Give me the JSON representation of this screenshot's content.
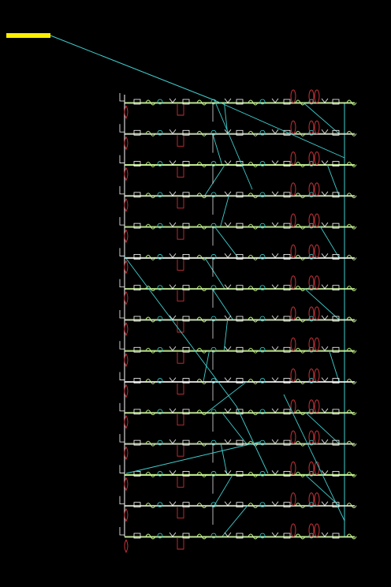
{
  "view": {
    "background": "#000000"
  },
  "colors": {
    "wire": "#3fd0d0",
    "component_primary": "#ffffff",
    "component_secondary": "#c8ff88",
    "coil": "#c8323a",
    "highlight": "#ffee00"
  },
  "layout": {
    "rows": 15,
    "columns": 6,
    "selected": true
  },
  "icons": {
    "selection_marker": "selection-bar-icon",
    "component": "circuit-component-icon",
    "coil": "coil-loop-icon"
  }
}
